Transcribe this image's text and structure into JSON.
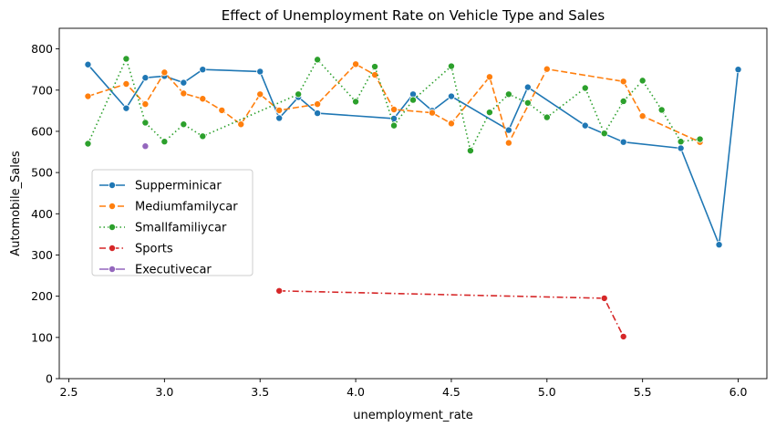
{
  "chart_data": {
    "type": "line",
    "title": "Effect of Unemployment Rate on Vehicle Type and Sales",
    "xlabel": "unemployment_rate",
    "ylabel": "Automobile_Sales",
    "xlim": [
      2.45,
      6.15
    ],
    "ylim": [
      0,
      850
    ],
    "xticks": [
      2.5,
      3.0,
      3.5,
      4.0,
      4.5,
      5.0,
      5.5,
      6.0
    ],
    "xtick_labels": [
      "2.5",
      "3.0",
      "3.5",
      "4.0",
      "4.5",
      "5.0",
      "5.5",
      "6.0"
    ],
    "yticks": [
      0,
      100,
      200,
      300,
      400,
      500,
      600,
      700,
      800
    ],
    "ytick_labels": [
      "0",
      "100",
      "200",
      "300",
      "400",
      "500",
      "600",
      "700",
      "800"
    ],
    "grid": false,
    "legend_position": "center-left",
    "series": [
      {
        "name": "Supperminicar",
        "color": "#1f77b4",
        "dash": "solid",
        "x": [
          2.6,
          2.8,
          2.9,
          3.0,
          3.1,
          3.2,
          3.5,
          3.6,
          3.7,
          3.8,
          4.2,
          4.3,
          4.4,
          4.5,
          4.8,
          4.9,
          5.2,
          5.4,
          5.7,
          5.9,
          6.0
        ],
        "y": [
          762,
          656,
          730,
          734,
          718,
          750,
          745,
          632,
          683,
          644,
          631,
          690,
          650,
          685,
          603,
          707,
          614,
          574,
          559,
          325,
          750
        ]
      },
      {
        "name": "Mediumfamilycar",
        "color": "#ff7f0e",
        "dash": "dashed",
        "x": [
          2.6,
          2.8,
          2.9,
          3.0,
          3.1,
          3.2,
          3.3,
          3.4,
          3.5,
          3.6,
          3.8,
          4.0,
          4.1,
          4.2,
          4.4,
          4.5,
          4.7,
          4.8,
          5.0,
          5.4,
          5.5,
          5.8
        ],
        "y": [
          685,
          715,
          666,
          743,
          692,
          679,
          651,
          617,
          690,
          651,
          666,
          763,
          737,
          653,
          645,
          619,
          732,
          572,
          751,
          721,
          637,
          574
        ]
      },
      {
        "name": "Smallfamiliycar",
        "color": "#2ca02c",
        "dash": "dotted",
        "x": [
          2.6,
          2.8,
          2.9,
          3.0,
          3.1,
          3.2,
          3.7,
          3.8,
          4.0,
          4.1,
          4.2,
          4.3,
          4.5,
          4.6,
          4.7,
          4.8,
          4.9,
          5.0,
          5.2,
          5.3,
          5.4,
          5.5,
          5.6,
          5.7,
          5.8
        ],
        "y": [
          570,
          776,
          621,
          575,
          617,
          588,
          690,
          774,
          672,
          757,
          614,
          676,
          758,
          553,
          646,
          690,
          669,
          634,
          705,
          595,
          673,
          723,
          652,
          575,
          581
        ]
      },
      {
        "name": "Sports",
        "color": "#d62728",
        "dash": "dashdot",
        "x": [
          3.6,
          5.3,
          5.4
        ],
        "y": [
          213,
          195,
          102
        ]
      },
      {
        "name": "Executivecar",
        "color": "#9467bd",
        "dash": "solid",
        "x": [
          2.9
        ],
        "y": [
          564
        ]
      }
    ]
  }
}
